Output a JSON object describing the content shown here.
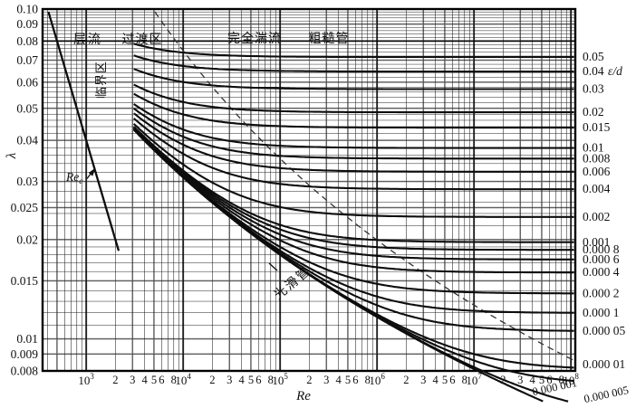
{
  "chart_data": {
    "type": "line",
    "xlabel": "Re",
    "ylabel": "λ",
    "y2label": "ε/d",
    "x_scale": "log",
    "y_scale": "log",
    "x_range": [
      355,
      100000000
    ],
    "y_range": [
      0.008,
      0.1
    ],
    "x_decade_exponents": [
      3,
      4,
      5,
      6,
      7,
      8
    ],
    "x_minor_tick_labels": [
      "2",
      "3",
      "4",
      "5",
      "6",
      "8"
    ],
    "y_ticks": [
      {
        "value": 0.1,
        "label": "0.10"
      },
      {
        "value": 0.09,
        "label": "0.09"
      },
      {
        "value": 0.08,
        "label": "0.08"
      },
      {
        "value": 0.07,
        "label": "0.07"
      },
      {
        "value": 0.06,
        "label": "0.06"
      },
      {
        "value": 0.05,
        "label": "0.05"
      },
      {
        "value": 0.04,
        "label": "0.04"
      },
      {
        "value": 0.03,
        "label": "0.03"
      },
      {
        "value": 0.025,
        "label": "0.025"
      },
      {
        "value": 0.02,
        "label": "0.02"
      },
      {
        "value": 0.015,
        "label": "0.015"
      },
      {
        "value": 0.01,
        "label": "0.01"
      },
      {
        "value": 0.009,
        "label": "0.009"
      },
      {
        "value": 0.008,
        "label": "0.008"
      }
    ],
    "right_axis": {
      "title": "ε/d",
      "labels": [
        {
          "value": 0.05,
          "label": "0.05"
        },
        {
          "value": 0.04,
          "label": "0.04"
        },
        {
          "value": 0.03,
          "label": "0.03"
        },
        {
          "value": 0.02,
          "label": "0.02"
        },
        {
          "value": 0.015,
          "label": "0.015"
        },
        {
          "value": 0.01,
          "label": "0.01"
        },
        {
          "value": 0.008,
          "label": "0.008"
        },
        {
          "value": 0.006,
          "label": "0.006"
        },
        {
          "value": 0.004,
          "label": "0.004"
        },
        {
          "value": 0.002,
          "label": "0.002"
        },
        {
          "value": 0.001,
          "label": "0.001"
        },
        {
          "value": 0.0008,
          "label": "0.000 8"
        },
        {
          "value": 0.0006,
          "label": "0.000 6"
        },
        {
          "value": 0.0004,
          "label": "0.000 4"
        },
        {
          "value": 0.0002,
          "label": "0.000 2"
        },
        {
          "value": 0.0001,
          "label": "0.000 1"
        },
        {
          "value": 5e-05,
          "label": "0.000 05"
        },
        {
          "value": 1e-05,
          "label": "0.000 01"
        }
      ],
      "below_axis_labels": [
        {
          "value": 1e-06,
          "label": "0.000 001"
        },
        {
          "value": 5e-06,
          "label": "0.000 005"
        }
      ]
    },
    "series": {
      "description": "Colebrook–White friction factor curves, one per relative roughness ε/d",
      "relative_roughness": [
        0.05,
        0.04,
        0.03,
        0.02,
        0.015,
        0.01,
        0.008,
        0.006,
        0.004,
        0.002,
        0.001,
        0.0008,
        0.0006,
        0.0004,
        0.0002,
        0.0001,
        5e-05,
        1e-05,
        5e-06,
        1e-06
      ],
      "smooth_pipe_eps_d": 0,
      "re_start": 3100,
      "re_end": 100000000
    },
    "laminar_line": {
      "lambda_re_product": 40,
      "lambda_start": 0.098,
      "lambda_end": 0.0185
    },
    "critical_re_marker": {
      "label_main": "Re",
      "label_sub": "c"
    },
    "rough_boundary_dashed": {
      "coef": 300,
      "eps_max": 0.105,
      "eps_min": 1.5e-05
    },
    "zone_labels": {
      "laminar": "层流",
      "critical": "临界区",
      "transition": "过渡区",
      "fully_turbulent": "完全湍流",
      "rough_pipe": "粗糙管",
      "smooth_pipe": "光滑管"
    },
    "colors": {
      "curve": "#0d0d0d",
      "grid_minor": "#222222",
      "grid_major_gray": "#9e9e9e",
      "border": "#000000",
      "dashed_boundary": "#333333",
      "background": "#ffffff"
    }
  }
}
